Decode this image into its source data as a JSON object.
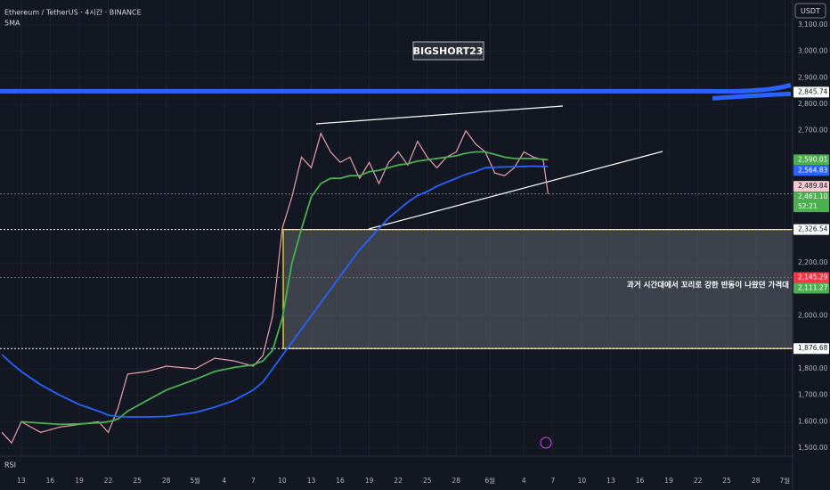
{
  "header": {
    "symbol": "Ethereum / TetherUS · 4시간 · BINANCE",
    "indicator": "5MA",
    "currency": "USDT",
    "watermark": "BIGSHORT23",
    "rsi": "RSI"
  },
  "annotation": "과거 시간대에서 꼬리로 강한 반동이 나왔던 가격대",
  "chart_data": {
    "type": "line",
    "x": [
      -2,
      -1,
      0,
      2,
      4,
      6,
      8,
      9,
      10,
      11,
      13,
      15,
      18,
      20,
      22,
      24,
      25,
      26,
      27,
      28,
      29,
      30,
      31,
      32,
      33,
      34,
      35,
      36,
      37,
      38,
      39,
      40,
      41,
      42,
      43,
      44,
      45,
      46,
      47,
      48,
      49,
      50,
      51,
      52,
      53,
      54,
      54.5
    ],
    "series": [
      {
        "color": "#e8a0ae",
        "values": [
          1560,
          1520,
          1600,
          1560,
          1580,
          1590,
          1600,
          1560,
          1650,
          1780,
          1790,
          1810,
          1800,
          1840,
          1830,
          1810,
          1850,
          2000,
          2330,
          2450,
          2600,
          2560,
          2690,
          2620,
          2580,
          2600,
          2520,
          2580,
          2500,
          2580,
          2620,
          2570,
          2660,
          2600,
          2560,
          2600,
          2620,
          2700,
          2650,
          2620,
          2540,
          2530,
          2560,
          2620,
          2600,
          2590,
          2461.1
        ]
      },
      {
        "color": "#4caf50",
        "values": [
          null,
          null,
          1600,
          1595,
          1590,
          1592,
          1596,
          1600,
          1610,
          1640,
          1680,
          1720,
          1760,
          1790,
          1805,
          1815,
          1830,
          1870,
          1990,
          2200,
          2330,
          2450,
          2500,
          2520,
          2520,
          2530,
          2530,
          2545,
          2550,
          2560,
          2570,
          2575,
          2585,
          2590,
          2595,
          2600,
          2605,
          2615,
          2620,
          2620,
          2610,
          2600,
          2595,
          2595,
          2595,
          2592,
          2590.01
        ]
      },
      {
        "color": "#2962ff",
        "values": [
          1854,
          1820,
          1790,
          1740,
          1700,
          1665,
          1640,
          1625,
          1620,
          1618,
          1618,
          1620,
          1635,
          1655,
          1680,
          1720,
          1750,
          1800,
          1850,
          1900,
          1950,
          2000,
          2050,
          2100,
          2150,
          2200,
          2250,
          2290,
          2330,
          2370,
          2400,
          2430,
          2455,
          2470,
          2490,
          2505,
          2520,
          2535,
          2545,
          2560,
          2562,
          2563,
          2564,
          2565,
          2566,
          2565,
          2564.83
        ]
      }
    ],
    "xlim": [
      -2.2,
      79.8
    ],
    "ylim": [
      1470,
      3194
    ],
    "xticks": [
      {
        "value": 0,
        "label": "13"
      },
      {
        "value": 3,
        "label": "16"
      },
      {
        "value": 6,
        "label": "19"
      },
      {
        "value": 9,
        "label": "22"
      },
      {
        "value": 12,
        "label": "25"
      },
      {
        "value": 15,
        "label": "28"
      },
      {
        "value": 18,
        "label": "5월"
      },
      {
        "value": 21,
        "label": "4"
      },
      {
        "value": 24,
        "label": "7"
      },
      {
        "value": 27,
        "label": "10"
      },
      {
        "value": 30,
        "label": "13"
      },
      {
        "value": 33,
        "label": "16"
      },
      {
        "value": 36,
        "label": "19"
      },
      {
        "value": 39,
        "label": "22"
      },
      {
        "value": 42,
        "label": "25"
      },
      {
        "value": 45,
        "label": "28"
      },
      {
        "value": 48.5,
        "label": "6월"
      },
      {
        "value": 52,
        "label": "4"
      },
      {
        "value": 55,
        "label": "7"
      },
      {
        "value": 58,
        "label": "10"
      },
      {
        "value": 61,
        "label": "13"
      },
      {
        "value": 64,
        "label": "16"
      },
      {
        "value": 67,
        "label": "19"
      },
      {
        "value": 70,
        "label": "22"
      },
      {
        "value": 73,
        "label": "25"
      },
      {
        "value": 76,
        "label": "28"
      },
      {
        "value": 79,
        "label": "7월"
      }
    ],
    "yticks": [
      {
        "value": 3100,
        "label": "3,100.00"
      },
      {
        "value": 3000,
        "label": "3,000.00"
      },
      {
        "value": 2900,
        "label": "2,900.00"
      },
      {
        "value": 2800,
        "label": "2,800.00"
      },
      {
        "value": 2700,
        "label": "2,700.00"
      },
      {
        "value": 2200,
        "label": "2,200.00"
      },
      {
        "value": 2000,
        "label": "2,000.00"
      },
      {
        "value": 1800,
        "label": "1,800.00"
      },
      {
        "value": 1700,
        "label": "1,700.00"
      },
      {
        "value": 1600,
        "label": "1,600.00"
      },
      {
        "value": 1500,
        "label": "1,500.00"
      }
    ],
    "price_labels": [
      {
        "value": 2845.74,
        "label": "2,845.74",
        "color": "#ffffff"
      },
      {
        "value": 2590.01,
        "label": "2,590.01",
        "color": "#4caf50"
      },
      {
        "value": 2564.83,
        "label": "2,564.83",
        "color": "#2962ff"
      },
      {
        "value": 2489.84,
        "label": "2,489.84",
        "color": "#f8c8d0"
      },
      {
        "value": 2461.1,
        "label": "2,461.10",
        "color": "#4caf50"
      },
      {
        "value": 2326.54,
        "label": "2,326.54",
        "color": "#ffffff"
      },
      {
        "value": 2145.29,
        "label": "2,145.29",
        "color": "#f23645"
      },
      {
        "value": 2111.27,
        "label": "2,111.27",
        "color": "#4caf50"
      },
      {
        "value": 1876.68,
        "label": "1,876.68",
        "color": "#ffffff"
      }
    ],
    "countdown": "52:21"
  }
}
